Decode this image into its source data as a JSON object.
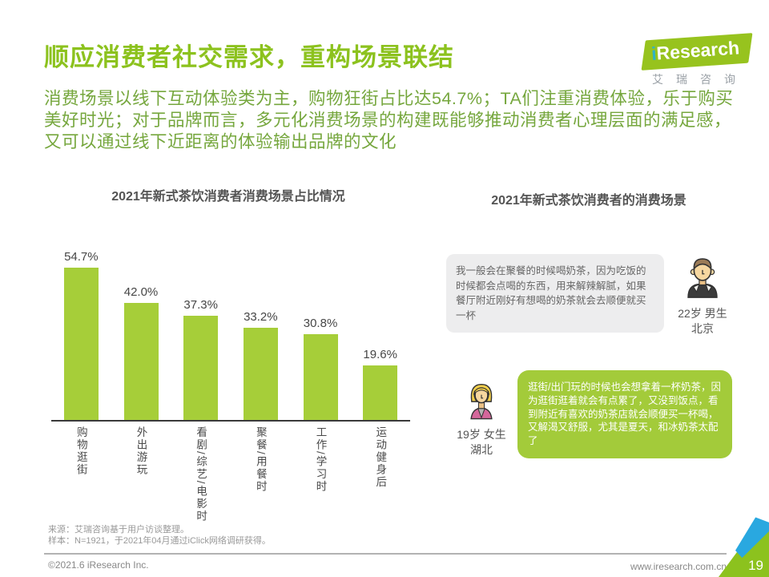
{
  "page": {
    "title": "顺应消费者社交需求，重构场景联结",
    "intro": "消费场景以线下互动体验类为主，购物狂街占比达54.7%；TA们注重消费体验，乐于购买美好时光；对于品牌而言，多元化消费场景的构建既能够推动消费者心理层面的满足感，又可以通过线下近距离的体验输出品牌的文化"
  },
  "logo": {
    "brand_i": "i",
    "brand_rest": "Research",
    "subtitle": "艾瑞咨询"
  },
  "chart_data": {
    "type": "bar",
    "title": "2021年新式茶饮消费者消费场景占比情况",
    "categories": [
      "购物逛街",
      "外出游玩",
      "看剧/综艺/电影时",
      "聚餐/用餐时",
      "工作/学习时",
      "运动健身后"
    ],
    "values": [
      54.7,
      42.0,
      37.3,
      33.2,
      30.8,
      19.6
    ],
    "value_labels": [
      "54.7%",
      "42.0%",
      "37.3%",
      "33.2%",
      "30.8%",
      "19.6%"
    ],
    "ylim": [
      0,
      60
    ],
    "bar_color": "#a6ce39",
    "legend": "none",
    "grid": "off"
  },
  "scenes": {
    "title": "2021年新式茶饮消费者的消费场景",
    "quotes": [
      {
        "text": "我一般会在聚餐的时候喝奶茶，因为吃饭的时候都会点喝的东西，用来解辣解腻，如果餐厅附近刚好有想喝的奶茶就会去顺便就买一杯",
        "person": "22岁 男生",
        "location": "北京"
      },
      {
        "text": "逛街/出门玩的时候也会想拿着一杯奶茶，因为逛街逛着就会有点累了，又没到饭点，看到附近有喜欢的奶茶店就会顺便买一杯喝，又解渴又舒服，尤其是夏天，和冰奶茶太配了",
        "person": "19岁 女生",
        "location": "湖北"
      }
    ]
  },
  "footer": {
    "source_line1": "来源：艾瑞咨询基于用户访谈整理。",
    "source_line2": "样本：N=1921，于2021年04月通过iClick网络调研获得。",
    "copyright": "©2021.6 iResearch Inc.",
    "website": "www.iresearch.com.cn",
    "page_number": "19"
  },
  "colors": {
    "accent_green": "#8cc21e",
    "intro_green": "#76a73e",
    "bar_green": "#a6ce39",
    "quote_green_bg": "#a3cb3a",
    "quote_gray_bg": "#ededee",
    "logo_teal": "#2fb3c7",
    "corner_blue": "#29a8e0",
    "corner_light_green": "#c6db57"
  }
}
